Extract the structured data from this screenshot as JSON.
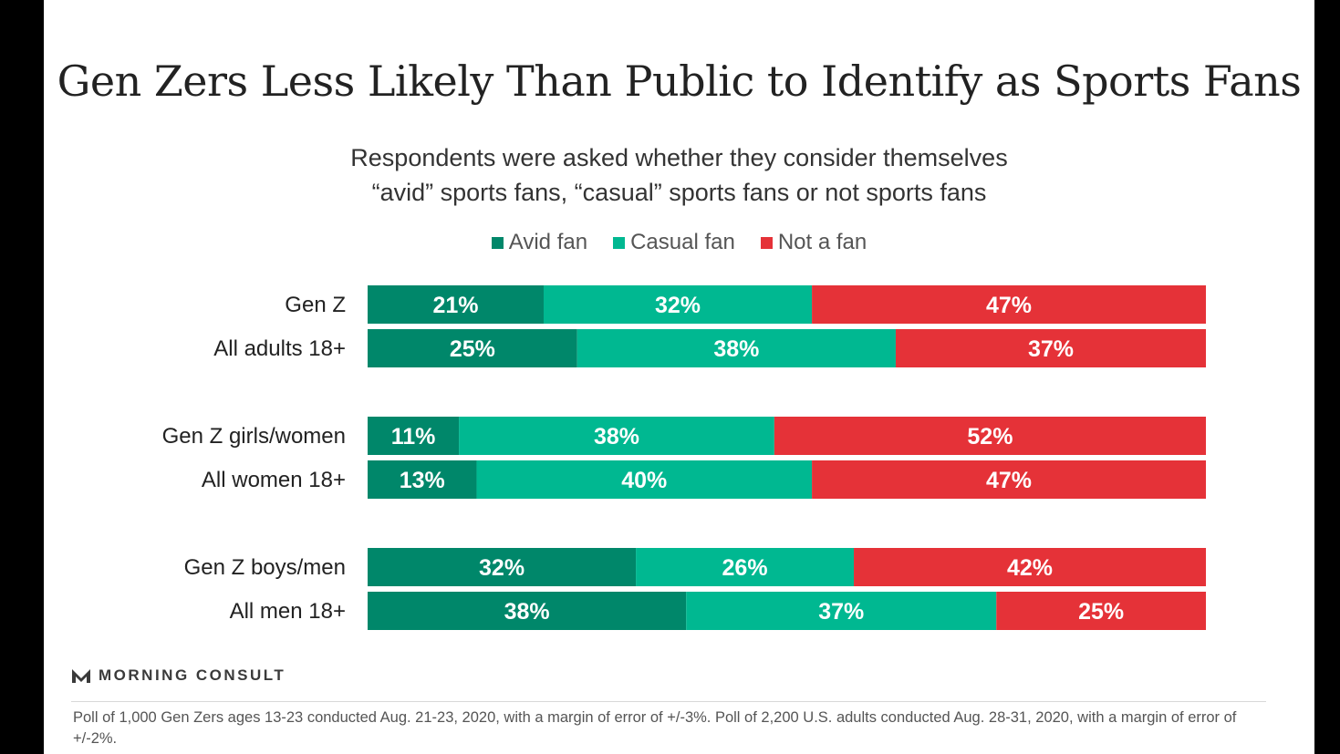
{
  "title": "Gen Zers Less Likely Than Public to Identify as Sports Fans",
  "subtitle_line1": "Respondents were asked whether they consider themselves",
  "subtitle_line2": "“avid” sports fans, “casual” sports fans or not sports fans",
  "brand": "MORNING CONSULT",
  "footnote": "Poll of 1,000 Gen Zers ages 13-23 conducted Aug. 21-23, 2020, with a margin of error of +/-3%. Poll of 2,200 U.S. adults conducted Aug. 28-31, 2020, with a margin of error of +/-2%.",
  "colors": {
    "avid": "#00876a",
    "casual": "#00b891",
    "not": "#e53238",
    "label_text": "#ffffff"
  },
  "chart_data": {
    "type": "bar",
    "orientation": "horizontal",
    "stacked": true,
    "percent_stacked": true,
    "title": "Gen Zers Less Likely Than Public to Identify as Sports Fans",
    "legend_position": "top",
    "categories": [
      "Gen Z",
      "All adults 18+",
      "Gen Z girls/women",
      "All women 18+",
      "Gen Z boys/men",
      "All men 18+"
    ],
    "series": [
      {
        "name": "Avid fan",
        "color": "#00876a",
        "values": [
          21,
          25,
          11,
          13,
          32,
          38
        ],
        "labels": [
          "21%",
          "25%",
          "11%",
          "13%",
          "32%",
          "38%"
        ]
      },
      {
        "name": "Casual fan",
        "color": "#00b891",
        "values": [
          32,
          38,
          38,
          40,
          26,
          37
        ],
        "labels": [
          "32%",
          "38%",
          "38%",
          "40%",
          "26%",
          "37%"
        ]
      },
      {
        "name": "Not a fan",
        "color": "#e53238",
        "values": [
          47,
          37,
          52,
          47,
          42,
          25
        ],
        "labels": [
          "47%",
          "37%",
          "52%",
          "47%",
          "42%",
          "25%"
        ]
      }
    ]
  }
}
